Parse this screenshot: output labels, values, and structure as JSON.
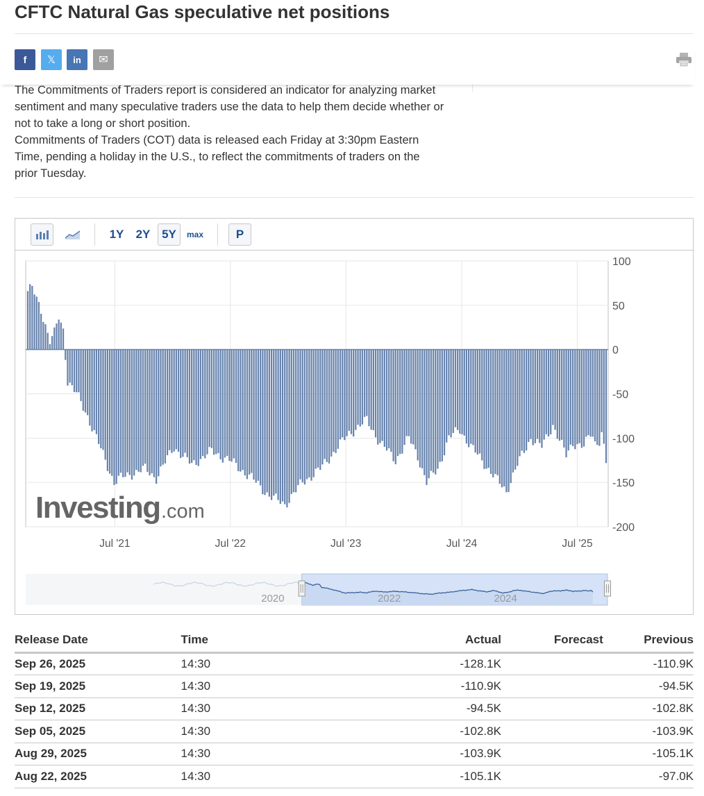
{
  "page": {
    "title": "CFTC Natural Gas speculative net positions"
  },
  "share": {
    "buttons": [
      {
        "name": "facebook",
        "glyph": "f",
        "color": "#3b5998"
      },
      {
        "name": "x",
        "glyph": "𝕏",
        "color": "#55acee"
      },
      {
        "name": "linkedin",
        "glyph": "in",
        "color": "#4875b4"
      },
      {
        "name": "email",
        "glyph": "✉",
        "color": "#a0a0a0"
      }
    ],
    "print_icon": "printer-icon"
  },
  "description": {
    "line1": "The Commitments of Traders report is considered an indicator for analyzing market sentiment and many speculative traders use the data to help them decide whether or not to take a long or short position.",
    "line2": "Commitments of Traders (COT) data is released each Friday at 3:30pm Eastern Time, pending a holiday in the U.S., to reflect the commitments of traders on the prior Tuesday.",
    "side_fragment": "traders"
  },
  "toolbar": {
    "bar_icon": "bar-chart-icon",
    "line_icon": "line-chart-icon",
    "ranges": [
      "1Y",
      "2Y",
      "5Y",
      "max"
    ],
    "active_range": "5Y",
    "pin_label": "P"
  },
  "watermark": {
    "brand": "Investing",
    "suffix": ".com"
  },
  "chart_data": {
    "type": "bar",
    "title": "",
    "xlabel": "",
    "ylabel": "",
    "ylim": [
      -200,
      100
    ],
    "y_ticks": [
      "100",
      "50",
      "0",
      "-50",
      "-100",
      "-150",
      "-200"
    ],
    "y_tick_values": [
      100,
      50,
      0,
      -50,
      -100,
      -150,
      -200
    ],
    "x_tick_labels": [
      "Jul '21",
      "Jul '22",
      "Jul '23",
      "Jul '24",
      "Jul '25"
    ],
    "x_tick_dates": [
      "2021-07-01",
      "2022-07-01",
      "2023-07-01",
      "2024-07-01",
      "2025-07-01"
    ],
    "x_range": [
      "2020-09-29",
      "2025-09-30"
    ],
    "grid": true,
    "bar_color": "#6783ad",
    "weekly_values_knots": [
      [
        "2020-09-29",
        66
      ],
      [
        "2020-10-13",
        70
      ],
      [
        "2020-10-27",
        56
      ],
      [
        "2020-11-10",
        45
      ],
      [
        "2020-11-24",
        28
      ],
      [
        "2020-12-08",
        10
      ],
      [
        "2020-12-22",
        18
      ],
      [
        "2021-01-05",
        36
      ],
      [
        "2021-01-19",
        22
      ],
      [
        "2021-02-02",
        -35
      ],
      [
        "2021-03-02",
        -50
      ],
      [
        "2021-04-06",
        -75
      ],
      [
        "2021-05-04",
        -100
      ],
      [
        "2021-06-01",
        -125
      ],
      [
        "2021-06-29",
        -150
      ],
      [
        "2021-07-20",
        -145
      ],
      [
        "2021-08-24",
        -140
      ],
      [
        "2021-10-05",
        -135
      ],
      [
        "2021-11-09",
        -145
      ],
      [
        "2022-01-04",
        -110
      ],
      [
        "2022-03-01",
        -130
      ],
      [
        "2022-05-03",
        -115
      ],
      [
        "2022-06-28",
        -125
      ],
      [
        "2022-09-06",
        -145
      ],
      [
        "2022-11-01",
        -165
      ],
      [
        "2022-12-20",
        -175
      ],
      [
        "2023-02-14",
        -150
      ],
      [
        "2023-04-11",
        -135
      ],
      [
        "2023-06-06",
        -110
      ],
      [
        "2023-07-11",
        -95
      ],
      [
        "2023-09-05",
        -80
      ],
      [
        "2023-10-17",
        -105
      ],
      [
        "2023-12-05",
        -125
      ],
      [
        "2024-01-16",
        -100
      ],
      [
        "2024-02-13",
        -120
      ],
      [
        "2024-03-12",
        -150
      ],
      [
        "2024-04-16",
        -135
      ],
      [
        "2024-05-21",
        -100
      ],
      [
        "2024-06-25",
        -90
      ],
      [
        "2024-07-30",
        -110
      ],
      [
        "2024-09-03",
        -125
      ],
      [
        "2024-10-15",
        -145
      ],
      [
        "2024-11-19",
        -160
      ],
      [
        "2024-12-24",
        -130
      ],
      [
        "2025-02-04",
        -100
      ],
      [
        "2025-03-11",
        -110
      ],
      [
        "2025-04-15",
        -85
      ],
      [
        "2025-05-27",
        -120
      ],
      [
        "2025-06-17",
        -105
      ],
      [
        "2025-07-22",
        -110
      ],
      [
        "2025-08-12",
        -95
      ],
      [
        "2025-08-19",
        -97
      ],
      [
        "2025-08-26",
        -105.1
      ],
      [
        "2025-09-02",
        -103.9
      ],
      [
        "2025-09-09",
        -102.8
      ],
      [
        "2025-09-16",
        -94.5
      ],
      [
        "2025-09-23",
        -110.9
      ],
      [
        "2025-09-30",
        -128.1
      ]
    ],
    "navigator": {
      "year_labels": [
        "2020",
        "2022",
        "2024"
      ],
      "year_dates": [
        "2020-01-01",
        "2022-01-01",
        "2024-01-01"
      ],
      "range": [
        "2016-01-01",
        "2025-12-31"
      ],
      "selected_from": "2020-09-29"
    }
  },
  "table": {
    "headers": {
      "date": "Release Date",
      "time": "Time",
      "actual": "Actual",
      "forecast": "Forecast",
      "previous": "Previous"
    },
    "rows": [
      {
        "date": "Sep 26, 2025",
        "time": "14:30",
        "actual": "-128.1K",
        "forecast": "",
        "previous": "-110.9K"
      },
      {
        "date": "Sep 19, 2025",
        "time": "14:30",
        "actual": "-110.9K",
        "forecast": "",
        "previous": "-94.5K"
      },
      {
        "date": "Sep 12, 2025",
        "time": "14:30",
        "actual": "-94.5K",
        "forecast": "",
        "previous": "-102.8K"
      },
      {
        "date": "Sep 05, 2025",
        "time": "14:30",
        "actual": "-102.8K",
        "forecast": "",
        "previous": "-103.9K"
      },
      {
        "date": "Aug 29, 2025",
        "time": "14:30",
        "actual": "-103.9K",
        "forecast": "",
        "previous": "-105.1K"
      },
      {
        "date": "Aug 22, 2025",
        "time": "14:30",
        "actual": "-105.1K",
        "forecast": "",
        "previous": "-97.0K"
      }
    ]
  }
}
